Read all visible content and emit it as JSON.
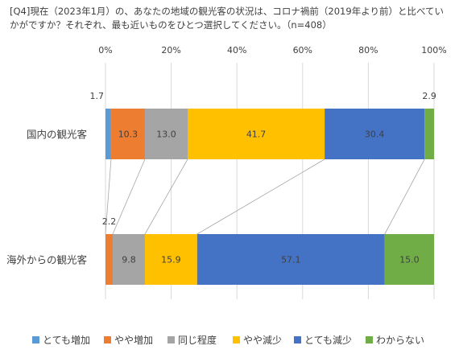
{
  "chart_data": {
    "type": "bar",
    "orientation": "horizontal",
    "stacked": true,
    "normalized": true,
    "title": "[Q4]現在（2023年1月）の、あなたの地域の観光客の状況は、コロナ禍前（2019年より前）と比べていかがですか？それぞれ、最も近いものをひとつ選択してください。（n=408）",
    "xlabel": "",
    "ylabel": "",
    "xlim": [
      0,
      100
    ],
    "x_ticks": [
      "0%",
      "20%",
      "40%",
      "60%",
      "80%",
      "100%"
    ],
    "categories": [
      "国内の観光客",
      "海外からの観光客"
    ],
    "series": [
      {
        "name": "とても増加",
        "color": "#5B9BD5",
        "values": [
          1.7,
          0.0
        ],
        "labels": [
          "1.7",
          ""
        ]
      },
      {
        "name": "やや増加",
        "color": "#ED7D31",
        "values": [
          10.3,
          2.2
        ],
        "labels": [
          "10.3",
          "2.2"
        ]
      },
      {
        "name": "同じ程度",
        "color": "#A5A5A5",
        "values": [
          13.0,
          9.8
        ],
        "labels": [
          "13.0",
          "9.8"
        ]
      },
      {
        "name": "やや減少",
        "color": "#FFC000",
        "values": [
          41.7,
          15.9
        ],
        "labels": [
          "41.7",
          "15.9"
        ]
      },
      {
        "name": "とても減少",
        "color": "#4472C4",
        "values": [
          30.4,
          57.1
        ],
        "labels": [
          "30.4",
          "57.1"
        ]
      },
      {
        "name": "わからない",
        "color": "#70AD47",
        "values": [
          2.9,
          15.0
        ],
        "labels": [
          "2.9",
          "15.0"
        ]
      }
    ],
    "grid": true,
    "series_lines": true,
    "legend": "bottom"
  }
}
